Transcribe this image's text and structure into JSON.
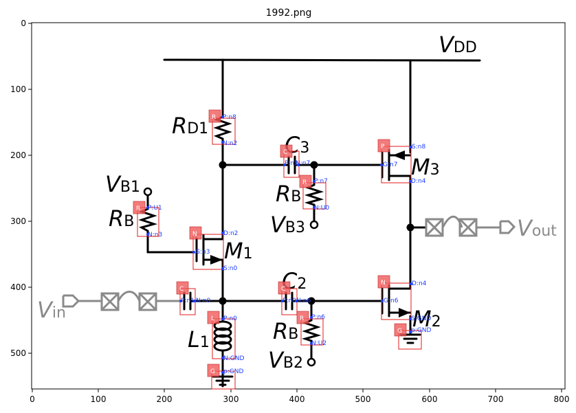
{
  "figure": {
    "title": "1992.png",
    "x_ticks": [
      "0",
      "100",
      "200",
      "300",
      "400",
      "500",
      "600",
      "700",
      "800"
    ],
    "y_ticks": [
      "0",
      "100",
      "200",
      "300",
      "400",
      "500"
    ]
  },
  "labels": {
    "vdd": {
      "main": "V",
      "sub": "DD"
    },
    "rd1": {
      "main": "R",
      "sub": "D1"
    },
    "c3": {
      "main": "C",
      "sub": "3"
    },
    "m3": {
      "main": "M",
      "sub": "3"
    },
    "vb1": {
      "main": "V",
      "sub": "B1"
    },
    "rb_top": {
      "main": "R",
      "sub": "B"
    },
    "rb_left": {
      "main": "R",
      "sub": "B"
    },
    "vb3": {
      "main": "V",
      "sub": "B3"
    },
    "m1": {
      "main": "M",
      "sub": "1"
    },
    "vout": {
      "main": "V",
      "sub": "out"
    },
    "c2": {
      "main": "C",
      "sub": "2"
    },
    "vin": {
      "main": "V",
      "sub": "in"
    },
    "m2": {
      "main": "M",
      "sub": "2"
    },
    "rb_bot": {
      "main": "R",
      "sub": "B"
    },
    "l1": {
      "main": "L",
      "sub": "1"
    },
    "vb2": {
      "main": "V",
      "sub": "B2"
    }
  },
  "components": [
    {
      "type": "R",
      "pins": [
        "P:n8",
        "N:n2"
      ]
    },
    {
      "type": "C",
      "pins": [
        "P:n2",
        "N:n7"
      ]
    },
    {
      "type": "P",
      "pins": [
        "S:n8",
        "G:n7",
        "D:n4"
      ]
    },
    {
      "type": "R",
      "pins": [
        "P:n7",
        "N:U0"
      ]
    },
    {
      "type": "R",
      "pins": [
        "P:U1",
        "N:n3"
      ]
    },
    {
      "type": "N",
      "pins": [
        "D:n2",
        "G:n3",
        "S:n0"
      ]
    },
    {
      "type": "C",
      "pins": [
        "P:n1",
        "N:n0"
      ]
    },
    {
      "type": "C",
      "pins": [
        "P:n0",
        "N:n6"
      ]
    },
    {
      "type": "N",
      "pins": [
        "D:n4",
        "G:n6",
        "S:GND"
      ]
    },
    {
      "type": "R",
      "pins": [
        "P:n6",
        "N:U2"
      ]
    },
    {
      "type": "L",
      "pins": [
        "P:n0",
        "N:GND"
      ]
    },
    {
      "type": "G",
      "pins": [
        "p:GND"
      ]
    },
    {
      "type": "G",
      "pins": [
        "p:GND"
      ]
    }
  ]
}
